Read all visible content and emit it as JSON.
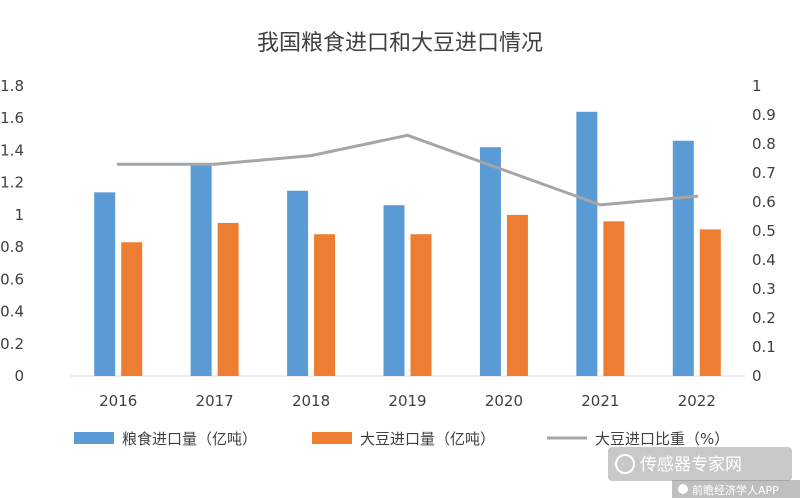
{
  "chart_data": {
    "type": "bar",
    "title": "我国粮食进口和大豆进口情况",
    "categories": [
      "2016",
      "2017",
      "2018",
      "2019",
      "2020",
      "2021",
      "2022"
    ],
    "series": [
      {
        "name": "粮食进口量（亿吨）",
        "type": "bar",
        "axis": "left",
        "color": "#5b9bd5",
        "values": [
          1.14,
          1.31,
          1.15,
          1.06,
          1.42,
          1.64,
          1.46
        ]
      },
      {
        "name": "大豆进口量（亿吨）",
        "type": "bar",
        "axis": "left",
        "color": "#ed7d31",
        "values": [
          0.83,
          0.95,
          0.88,
          0.88,
          1.0,
          0.96,
          0.91
        ]
      },
      {
        "name": "大豆进口比重（%）",
        "type": "line",
        "axis": "right",
        "color": "#a5a5a5",
        "values": [
          0.73,
          0.73,
          0.76,
          0.83,
          0.71,
          0.59,
          0.62
        ]
      }
    ],
    "y_left": {
      "min": 0,
      "max": 1.8,
      "ticks": [
        "0",
        "0.2",
        "0.4",
        "0.6",
        "0.8",
        "1",
        "1.2",
        "1.4",
        "1.6",
        "1.8"
      ]
    },
    "y_right": {
      "min": 0,
      "max": 1,
      "ticks": [
        "0",
        "0.1",
        "0.2",
        "0.3",
        "0.4",
        "0.5",
        "0.6",
        "0.7",
        "0.8",
        "0.9",
        "1"
      ]
    },
    "grid": false,
    "legend_position": "bottom"
  },
  "watermarks": {
    "top": "传感器专家网",
    "bottom": "前瞻经济学人APP"
  }
}
